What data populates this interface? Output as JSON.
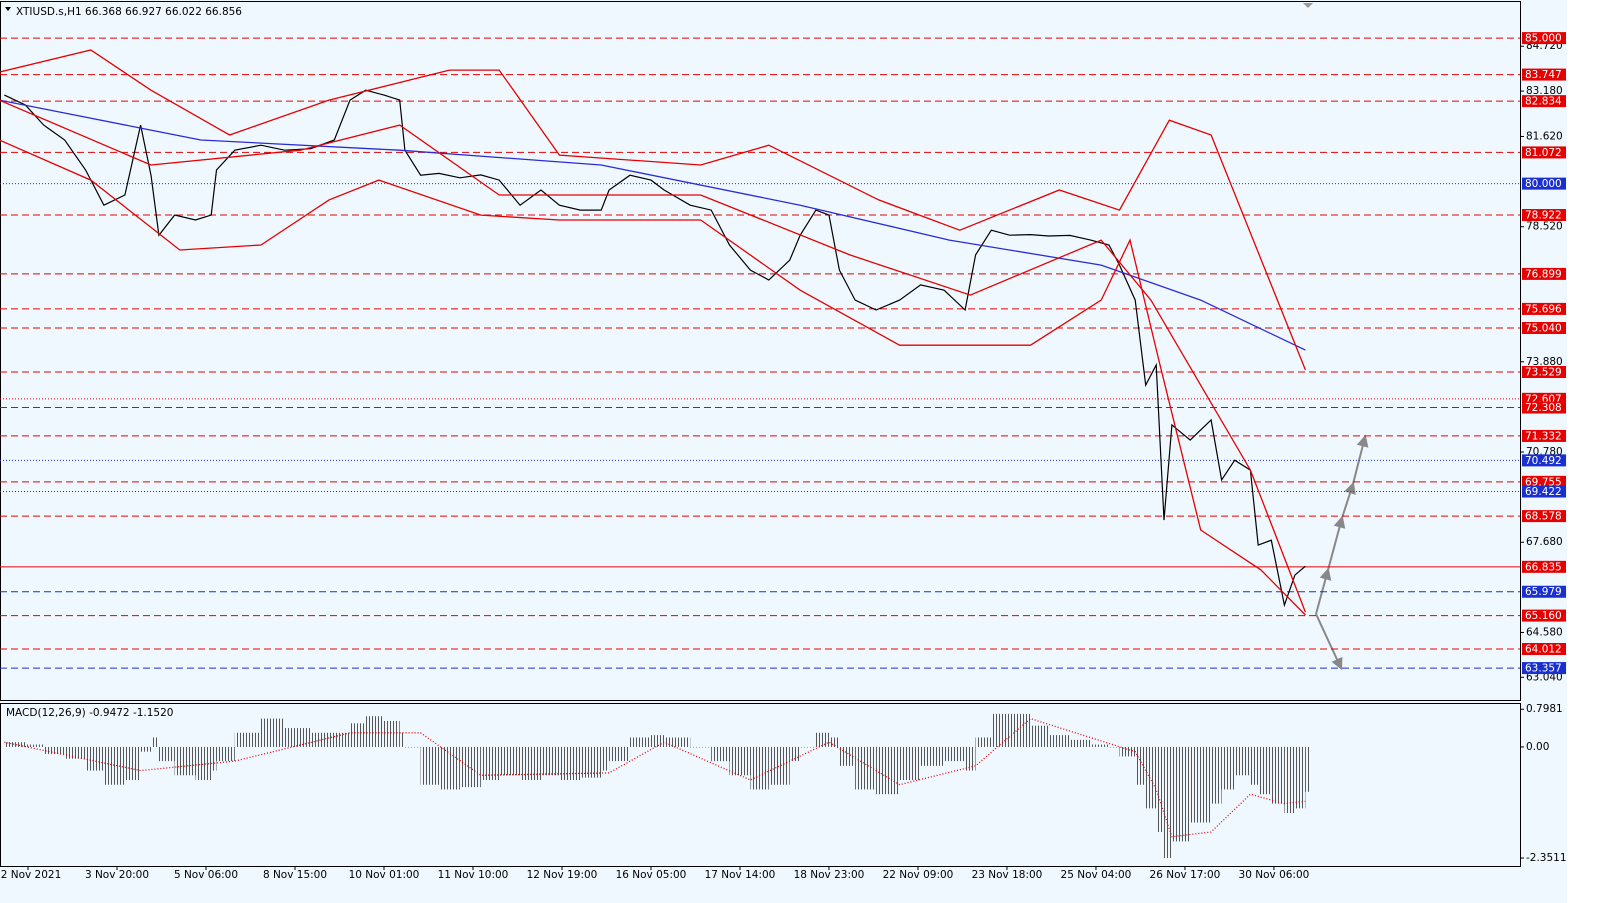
{
  "chart_data": [
    {
      "type": "line",
      "title": "XTIUSD.s,H1  66.368 66.927 66.022 66.856",
      "xlim": [
        -10.7,
        570
      ],
      "ylim": [
        62.26,
        86.24
      ],
      "yticks": [
        {
          "value": 84.72,
          "label": "84.720"
        },
        {
          "value": 83.18,
          "label": "83.180"
        },
        {
          "value": 81.62,
          "label": "81.620"
        },
        {
          "value": 78.52,
          "label": "78.520"
        },
        {
          "value": 73.88,
          "label": "73.880"
        },
        {
          "value": 70.78,
          "label": "70.780"
        },
        {
          "value": 67.68,
          "label": "67.680"
        },
        {
          "value": 64.58,
          "label": "64.580"
        },
        {
          "value": 63.04,
          "label": "63.040"
        }
      ],
      "levels": [
        {
          "value": 85,
          "label": "85.000",
          "color": "#e60000",
          "style": "dashed"
        },
        {
          "value": 83.747,
          "label": "83.747",
          "color": "#e60000",
          "style": "dashed"
        },
        {
          "value": 82.834,
          "label": "82.834",
          "color": "#e60000",
          "style": "dashed"
        },
        {
          "value": 81.072,
          "label": "81.072",
          "color": "#e60000",
          "style": "dashed"
        },
        {
          "value": 80,
          "label": "80.000",
          "color": "#1a2fd0",
          "style": "dotted"
        },
        {
          "value": 78.922,
          "label": "78.922",
          "color": "#e60000",
          "style": "dashed"
        },
        {
          "value": 76.899,
          "label": "76.899",
          "color": "#e60000",
          "style": "dashed"
        },
        {
          "value": 75.696,
          "label": "75.696",
          "color": "#e60000",
          "style": "dashed"
        },
        {
          "value": 75.04,
          "label": "75.040",
          "color": "#e60000",
          "style": "dashed"
        },
        {
          "value": 73.529,
          "label": "73.529",
          "color": "#e60000",
          "style": "dashed"
        },
        {
          "value": 72.607,
          "label": "72.607",
          "color": "#e60000",
          "style": "dotted"
        },
        {
          "value": 72.308,
          "label": "72.308",
          "color": "#e60000",
          "style": "dashed"
        },
        {
          "value": 71.332,
          "label": "71.332",
          "color": "#e60000",
          "style": "dashed"
        },
        {
          "value": 70.492,
          "label": "70.492",
          "color": "#1a2fd0",
          "style": "dotted"
        },
        {
          "value": 69.755,
          "label": "69.755",
          "color": "#e60000",
          "style": "dashed"
        },
        {
          "value": 69.422,
          "label": "69.422",
          "color": "#1a2fd0",
          "style": "dotted"
        },
        {
          "value": 68.578,
          "label": "68.578",
          "color": "#e60000",
          "style": "dashed"
        },
        {
          "value": 66.835,
          "label": "66.835",
          "color": "#e60000",
          "style": "solid"
        },
        {
          "value": 65.979,
          "label": "65.979",
          "color": "#1a2fd0",
          "style": "dashed"
        },
        {
          "value": 65.16,
          "label": "65.160",
          "color": "#e60000",
          "style": "dashed"
        },
        {
          "value": 64.012,
          "label": "64.012",
          "color": "#e60000",
          "style": "dashed"
        },
        {
          "value": 63.357,
          "label": "63.357",
          "color": "#1a2fd0",
          "style": "dashed"
        }
      ],
      "series": [
        {
          "color": "#000000",
          "x": [
            -9,
            -1,
            6,
            14,
            22,
            29,
            37,
            43,
            47,
            50,
            56,
            64,
            70,
            72,
            79,
            89,
            98,
            108,
            117,
            123,
            129,
            136,
            142,
            144,
            150,
            157,
            165,
            173,
            180,
            188,
            196,
            203,
            211,
            219,
            222,
            230,
            238,
            243,
            253,
            261,
            268,
            276,
            283,
            291,
            295,
            301,
            306,
            310,
            316,
            324,
            333,
            341,
            350,
            358,
            362,
            368,
            375,
            383,
            390,
            398,
            406,
            413,
            417,
            423,
            427,
            431,
            434,
            437,
            444,
            452,
            456,
            461,
            467,
            470,
            475,
            480,
            484,
            488
          ],
          "values": [
            83.04,
            82.7,
            82.01,
            81.5,
            80.47,
            79.26,
            79.61,
            82.01,
            80.29,
            78.23,
            78.92,
            78.75,
            78.92,
            80.47,
            81.15,
            81.32,
            81.15,
            81.2,
            81.5,
            82.87,
            83.21,
            83.04,
            82.87,
            81.15,
            80.29,
            80.35,
            80.2,
            80.3,
            80.12,
            79.26,
            79.78,
            79.26,
            79.09,
            79.09,
            79.78,
            80.29,
            80.12,
            79.78,
            79.26,
            79.09,
            77.89,
            77.03,
            76.69,
            77.37,
            78.23,
            79.09,
            78.92,
            77.03,
            76.0,
            75.66,
            76.0,
            76.52,
            76.34,
            75.66,
            77.55,
            78.4,
            78.23,
            78.25,
            78.2,
            78.22,
            78.06,
            77.89,
            77.2,
            76.0,
            73.08,
            73.77,
            68.44,
            71.71,
            71.19,
            71.88,
            69.82,
            70.5,
            70.16,
            67.58,
            67.75,
            65.52,
            66.55,
            66.856
          ]
        },
        {
          "color": "#2b2bd6",
          "x": [
            -11,
            66,
            142,
            219,
            295,
            352,
            410,
            448,
            488
          ],
          "values": [
            82.87,
            81.5,
            81.15,
            80.64,
            79.26,
            78.06,
            77.2,
            76.0,
            74.28
          ]
        },
        {
          "color": "#e60000",
          "x": [
            -11,
            24,
            47,
            77,
            115,
            161,
            180,
            203,
            257,
            283,
            325,
            356,
            394,
            417,
            436,
            452,
            488
          ],
          "values": [
            83.83,
            84.59,
            83.21,
            81.67,
            82.87,
            83.9,
            83.9,
            80.98,
            80.64,
            81.32,
            79.44,
            78.4,
            79.78,
            79.09,
            82.18,
            81.67,
            73.6
          ]
        },
        {
          "color": "#e60000",
          "x": [
            -11,
            47,
            104,
            142,
            180,
            257,
            314,
            360,
            410,
            429,
            467,
            488
          ],
          "values": [
            82.87,
            80.64,
            81.15,
            82.01,
            79.61,
            79.61,
            77.55,
            76.17,
            78.06,
            76.0,
            70.16,
            65.28
          ]
        },
        {
          "color": "#e60000",
          "x": [
            -11,
            24,
            58,
            89,
            115,
            134,
            173,
            203,
            257,
            295,
            333,
            360,
            383,
            410,
            421,
            432,
            448,
            471,
            488
          ],
          "values": [
            81.5,
            80.12,
            77.72,
            77.89,
            79.44,
            80.12,
            78.92,
            78.75,
            78.75,
            76.34,
            74.45,
            74.45,
            74.45,
            76.0,
            78.06,
            73.94,
            68.1,
            66.73,
            65.18
          ]
        }
      ]
    },
    {
      "type": "bar",
      "title": "MACD(12,26,9) -0.9472 -1.1520",
      "xlim": [
        -10.7,
        570
      ],
      "ylim": [
        -2.52,
        0.93
      ],
      "yticks": [
        0.7981,
        {
          "value": 0,
          "label": "0.00"
        },
        -2.3511
      ],
      "xticks": [
        {
          "value": 0,
          "label": "2 Nov 2021"
        },
        {
          "value": 34,
          "label": "3 Nov 20:00"
        },
        {
          "value": 68,
          "label": "5 Nov 06:00"
        },
        {
          "value": 102,
          "label": "8 Nov 15:00"
        },
        {
          "value": 136,
          "label": "10 Nov 01:00"
        },
        {
          "value": 170,
          "label": "11 Nov 10:00"
        },
        {
          "value": 204,
          "label": "12 Nov 19:00"
        },
        {
          "value": 238,
          "label": "16 Nov 05:00"
        },
        {
          "value": 272,
          "label": "17 Nov 14:00"
        },
        {
          "value": 306,
          "label": "18 Nov 23:00"
        },
        {
          "value": 340,
          "label": "22 Nov 09:00"
        },
        {
          "value": 374,
          "label": "23 Nov 18:00"
        },
        {
          "value": 408,
          "label": "25 Nov 04:00"
        },
        {
          "value": 442,
          "label": "26 Nov 17:00"
        },
        {
          "value": 476,
          "label": "30 Nov 06:00"
        }
      ],
      "series": [
        {
          "type": "bar",
          "color": "#606060",
          "x": [
            -9,
            -1,
            6,
            14,
            22,
            29,
            37,
            43,
            47,
            50,
            56,
            64,
            70,
            72,
            79,
            89,
            98,
            108,
            117,
            123,
            129,
            136,
            142,
            144,
            150,
            157,
            165,
            173,
            180,
            188,
            196,
            203,
            211,
            219,
            222,
            230,
            238,
            243,
            253,
            261,
            268,
            276,
            283,
            291,
            295,
            301,
            306,
            310,
            316,
            324,
            333,
            341,
            350,
            358,
            362,
            368,
            375,
            383,
            390,
            398,
            406,
            413,
            417,
            423,
            427,
            431,
            434,
            437,
            444,
            452,
            456,
            461,
            467,
            470,
            475,
            480,
            484,
            488
          ],
          "values": [
            0.1,
            0.05,
            -0.15,
            -0.25,
            -0.5,
            -0.8,
            -0.7,
            -0.1,
            0.2,
            -0.3,
            -0.6,
            -0.7,
            -0.5,
            -0.3,
            0.3,
            0.6,
            0.4,
            0.3,
            0.3,
            0.5,
            0.65,
            0.55,
            0.3,
            0.0,
            -0.8,
            -0.9,
            -0.85,
            -0.7,
            -0.6,
            -0.7,
            -0.6,
            -0.7,
            -0.65,
            -0.5,
            -0.3,
            0.2,
            0.25,
            0.2,
            0.0,
            -0.3,
            -0.6,
            -0.9,
            -0.8,
            -0.3,
            0.0,
            0.3,
            0.2,
            -0.4,
            -0.9,
            -1.0,
            -0.7,
            -0.4,
            -0.3,
            -0.5,
            0.2,
            0.7,
            0.7,
            0.45,
            0.25,
            0.15,
            0.05,
            0.0,
            -0.2,
            -0.8,
            -1.3,
            -1.8,
            -2.35,
            -2.0,
            -1.6,
            -1.2,
            -0.9,
            -0.6,
            -0.8,
            -1.0,
            -1.2,
            -1.4,
            -1.3,
            -0.95
          ]
        },
        {
          "type": "line",
          "color": "#e60000",
          "style": "dotted",
          "x": [
            -9,
            43,
            79,
            123,
            150,
            173,
            222,
            243,
            276,
            306,
            333,
            362,
            383,
            423,
            431,
            437,
            452,
            467,
            480,
            488
          ],
          "values": [
            0.1,
            -0.5,
            -0.3,
            0.3,
            0.3,
            -0.6,
            -0.55,
            0.1,
            -0.7,
            0.1,
            -0.8,
            -0.4,
            0.6,
            -0.1,
            -0.9,
            -1.9,
            -1.8,
            -1.0,
            -1.2,
            -1.15
          ]
        }
      ]
    }
  ]
}
